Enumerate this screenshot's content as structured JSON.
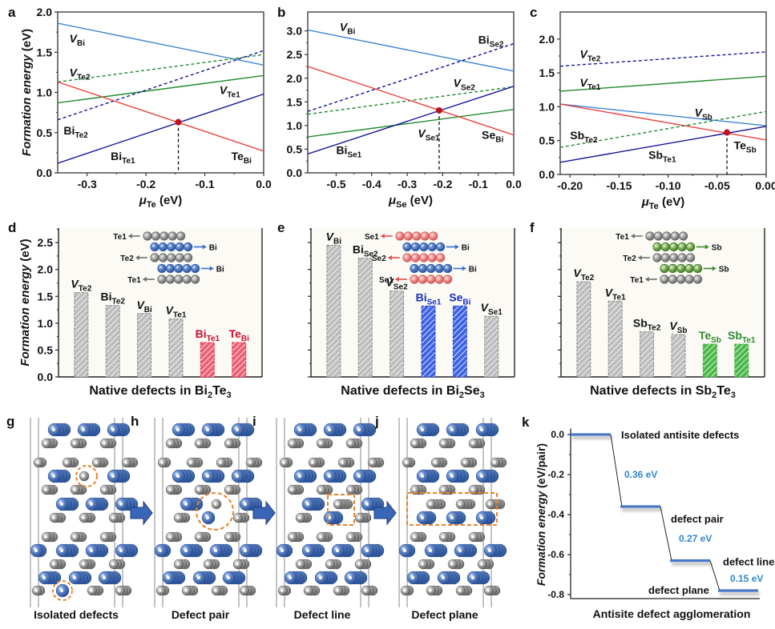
{
  "colors": {
    "v_cation": "#3a85d6",
    "anion_vac": "#1f8a2a",
    "antisite_cation": "#14149a",
    "antisite_anion": "#e8403a",
    "red_dot": "#c0101a",
    "bar_gray": "#a9a9a9",
    "bar_red": "#e0304a",
    "bar_blue": "#2a3fd0",
    "bar_green": "#3cae3c",
    "label_red": "#c8102e",
    "label_blue": "#1a2fc0",
    "label_green": "#2e8a2e",
    "k_level": "#4a78c8",
    "k_text": "#2f86d0",
    "orange": "#e8822a",
    "atom_blue": "#3e68b0",
    "atom_gray": "#8a8a8a",
    "arrow_blue": "#3a66b8",
    "plot_bg": "#fbfaf5"
  },
  "chart_data": [
    {
      "id": "a",
      "type": "line",
      "panel_letter": "a",
      "xlabel": "μ",
      "xlabel_sub": "Te",
      "xlabel_unit": " (eV)",
      "ylabel": "Formation energy (eV)",
      "xlim": [
        -0.35,
        0.0
      ],
      "ylim": [
        0.0,
        2.0
      ],
      "xticks": [
        -0.3,
        -0.2,
        -0.1,
        0.0
      ],
      "xtick_labels": [
        "-0.3",
        "-0.2",
        "-0.1",
        "0.0"
      ],
      "yticks": [
        0.0,
        0.5,
        1.0,
        1.5,
        2.0
      ],
      "ytick_labels": [
        "0.0",
        "0.5",
        "1.0",
        "1.5",
        "2.0"
      ],
      "series": [
        {
          "name": "V_Bi",
          "main": "V",
          "sub": "Bi",
          "italic": true,
          "color_key": "v_cation",
          "dash": false,
          "x": [
            -0.35,
            0.0
          ],
          "y": [
            1.86,
            1.34
          ],
          "label_at": [
            -0.33,
            1.62
          ]
        },
        {
          "name": "V_Te2",
          "main": "V",
          "sub": "Te2",
          "italic": true,
          "color_key": "anion_vac",
          "dash": true,
          "x": [
            -0.35,
            0.0
          ],
          "y": [
            1.13,
            1.47
          ],
          "label_at": [
            -0.33,
            1.2
          ]
        },
        {
          "name": "V_Te1",
          "main": "V",
          "sub": "Te1",
          "italic": true,
          "color_key": "anion_vac",
          "dash": false,
          "x": [
            -0.35,
            0.0
          ],
          "y": [
            0.87,
            1.21
          ],
          "label_at": [
            -0.075,
            0.98
          ]
        },
        {
          "name": "Bi_Te2",
          "main": "Bi",
          "sub": "Te2",
          "italic": false,
          "color_key": "antisite_cation",
          "dash": true,
          "x": [
            -0.35,
            0.0
          ],
          "y": [
            0.66,
            1.52
          ],
          "label_at": [
            -0.34,
            0.48
          ]
        },
        {
          "name": "Bi_Te1",
          "main": "Bi",
          "sub": "Te1",
          "italic": false,
          "color_key": "antisite_cation",
          "dash": false,
          "x": [
            -0.35,
            0.0
          ],
          "y": [
            0.12,
            0.98
          ],
          "label_at": [
            -0.26,
            0.16
          ]
        },
        {
          "name": "Te_Bi",
          "main": "Te",
          "sub": "Bi",
          "italic": false,
          "color_key": "antisite_anion",
          "dash": false,
          "x": [
            -0.35,
            0.0
          ],
          "y": [
            1.13,
            0.27
          ],
          "label_at": [
            -0.055,
            0.16
          ]
        }
      ],
      "marker": {
        "x": -0.145,
        "y": 0.63
      }
    },
    {
      "id": "b",
      "type": "line",
      "panel_letter": "b",
      "xlabel": "μ",
      "xlabel_sub": "Se",
      "xlabel_unit": " (eV)",
      "ylabel": "",
      "xlim": [
        -0.58,
        0.0
      ],
      "ylim": [
        0.0,
        3.4
      ],
      "xticks": [
        -0.5,
        -0.4,
        -0.3,
        -0.2,
        -0.1,
        0.0
      ],
      "xtick_labels": [
        "-0.5",
        "-0.4",
        "-0.3",
        "-0.2",
        "-0.1",
        "0.0"
      ],
      "yticks": [
        0.0,
        0.5,
        1.0,
        1.5,
        2.0,
        2.5,
        3.0
      ],
      "ytick_labels": [
        "0.0",
        "0.5",
        "1.0",
        "1.5",
        "2.0",
        "2.5",
        "3.0"
      ],
      "series": [
        {
          "name": "V_Bi",
          "main": "V",
          "sub": "Bi",
          "italic": true,
          "color_key": "v_cation",
          "dash": false,
          "x": [
            -0.58,
            0.0
          ],
          "y": [
            3.02,
            2.15
          ],
          "label_at": [
            -0.49,
            3.0
          ]
        },
        {
          "name": "Bi_Se2",
          "main": "Bi",
          "sub": "Se2",
          "italic": false,
          "color_key": "antisite_cation",
          "dash": true,
          "x": [
            -0.58,
            0.0
          ],
          "y": [
            1.3,
            2.73
          ],
          "label_at": [
            -0.1,
            2.73
          ]
        },
        {
          "name": "V_Se2",
          "main": "V",
          "sub": "Se2",
          "italic": true,
          "color_key": "anion_vac",
          "dash": true,
          "x": [
            -0.58,
            0.0
          ],
          "y": [
            1.24,
            1.82
          ],
          "label_at": [
            -0.17,
            1.82
          ]
        },
        {
          "name": "V_Se1",
          "main": "V",
          "sub": "Se1",
          "italic": true,
          "color_key": "anion_vac",
          "dash": false,
          "x": [
            -0.58,
            0.0
          ],
          "y": [
            0.76,
            1.34
          ],
          "label_at": [
            -0.27,
            0.75
          ]
        },
        {
          "name": "Bi_Se1",
          "main": "Bi",
          "sub": "Se1",
          "italic": false,
          "color_key": "antisite_cation",
          "dash": false,
          "x": [
            -0.58,
            0.0
          ],
          "y": [
            0.4,
            1.83
          ],
          "label_at": [
            -0.5,
            0.4
          ]
        },
        {
          "name": "Se_Bi",
          "main": "Se",
          "sub": "Bi",
          "italic": false,
          "color_key": "antisite_anion",
          "dash": false,
          "x": [
            -0.58,
            0.0
          ],
          "y": [
            2.25,
            0.8
          ],
          "label_at": [
            -0.09,
            0.72
          ]
        }
      ],
      "marker": {
        "x": -0.21,
        "y": 1.32
      }
    },
    {
      "id": "c",
      "type": "line",
      "panel_letter": "c",
      "xlabel": "μ",
      "xlabel_sub": "Te",
      "xlabel_unit": " (eV)",
      "ylabel": "",
      "xlim": [
        -0.21,
        0.0
      ],
      "ylim": [
        0.0,
        2.4
      ],
      "xticks": [
        -0.2,
        -0.15,
        -0.1,
        -0.05,
        0.0
      ],
      "xtick_labels": [
        "-0.20",
        "-0.15",
        "-0.10",
        "-0.05",
        "0.00"
      ],
      "yticks": [
        0.0,
        0.5,
        1.0,
        1.5,
        2.0
      ],
      "ytick_labels": [
        "0.0",
        "0.5",
        "1.0",
        "1.5",
        "2.0"
      ],
      "series": [
        {
          "name": "V_Te2",
          "main": "V",
          "sub": "Te2",
          "italic": true,
          "color_key": "antisite_cation",
          "dash": true,
          "x": [
            -0.21,
            0.0
          ],
          "y": [
            1.6,
            1.81
          ],
          "label_at": [
            -0.19,
            1.72
          ]
        },
        {
          "name": "V_Te1",
          "main": "V",
          "sub": "Te1",
          "italic": true,
          "color_key": "anion_vac",
          "dash": false,
          "x": [
            -0.21,
            0.0
          ],
          "y": [
            1.23,
            1.45
          ],
          "label_at": [
            -0.19,
            1.3
          ]
        },
        {
          "name": "V_Sb",
          "main": "V",
          "sub": "Sb",
          "italic": true,
          "color_key": "v_cation",
          "dash": false,
          "x": [
            -0.21,
            0.0
          ],
          "y": [
            1.04,
            0.72
          ],
          "label_at": [
            -0.073,
            0.86
          ]
        },
        {
          "name": "Te_Sb",
          "main": "Te",
          "sub": "Sb",
          "italic": false,
          "color_key": "antisite_anion",
          "dash": false,
          "x": [
            -0.21,
            0.0
          ],
          "y": [
            1.04,
            0.51
          ],
          "label_at": [
            -0.033,
            0.37
          ]
        },
        {
          "name": "Sb_Te2",
          "main": "Sb",
          "sub": "Te2",
          "italic": false,
          "color_key": "anion_vac",
          "dash": true,
          "x": [
            -0.21,
            0.0
          ],
          "y": [
            0.4,
            0.93
          ],
          "label_at": [
            -0.2,
            0.52
          ]
        },
        {
          "name": "Sb_Te1",
          "main": "Sb",
          "sub": "Te1",
          "italic": false,
          "color_key": "antisite_cation",
          "dash": false,
          "x": [
            -0.21,
            0.0
          ],
          "y": [
            0.18,
            0.71
          ],
          "label_at": [
            -0.12,
            0.23
          ]
        }
      ],
      "marker": {
        "x": -0.04,
        "y": 0.62
      }
    },
    {
      "id": "d",
      "type": "bar",
      "panel_letter": "d",
      "title": "Native defects in Bi",
      "title_sub1": "2",
      "title_mid": "Te",
      "title_sub2": "3",
      "ylabel": "Formation energy (eV)",
      "ylim": [
        0.0,
        2.77
      ],
      "yticks": [
        0.0,
        0.5,
        1.0,
        1.5,
        2.0,
        2.5
      ],
      "ytick_labels": [
        "0.0",
        "0.5",
        "1.0",
        "1.5",
        "2.0",
        "2.5"
      ],
      "show_ytick_labels": true,
      "bars": [
        {
          "main": "V",
          "sub": "Te2",
          "italic": true,
          "value": 1.57,
          "color_key": "bar_gray",
          "label_color_key": ""
        },
        {
          "main": "Bi",
          "sub": "Te2",
          "italic": false,
          "value": 1.33,
          "color_key": "bar_gray",
          "label_color_key": ""
        },
        {
          "main": "V",
          "sub": "Bi",
          "italic": true,
          "value": 1.18,
          "color_key": "bar_gray",
          "label_color_key": ""
        },
        {
          "main": "V",
          "sub": "Te1",
          "italic": true,
          "value": 1.08,
          "color_key": "bar_gray",
          "label_color_key": ""
        },
        {
          "main": "Bi",
          "sub": "Te1",
          "italic": false,
          "value": 0.64,
          "color_key": "bar_red",
          "label_color_key": "label_red"
        },
        {
          "main": "Te",
          "sub": "Bi",
          "italic": false,
          "value": 0.64,
          "color_key": "bar_red",
          "label_color_key": "label_red"
        }
      ],
      "inset": {
        "rows": [
          {
            "label": "Te1",
            "side": "left",
            "atom": "gray"
          },
          {
            "label": "Bi",
            "side": "right",
            "atom": "blue"
          },
          {
            "label": "Te2",
            "side": "left",
            "atom": "gray"
          },
          {
            "label": "Bi",
            "side": "right",
            "atom": "blue"
          },
          {
            "label": "Te1",
            "side": "left",
            "atom": "gray"
          }
        ]
      }
    },
    {
      "id": "e",
      "type": "bar",
      "panel_letter": "e",
      "title": "Native defects in Bi",
      "title_sub1": "2",
      "title_mid": "Se",
      "title_sub2": "3",
      "ylabel": "",
      "ylim": [
        0.0,
        2.77
      ],
      "yticks": [
        0.0,
        0.5,
        1.0,
        1.5,
        2.0,
        2.5
      ],
      "ytick_labels": [],
      "show_ytick_labels": false,
      "bars": [
        {
          "main": "V",
          "sub": "Bi",
          "italic": true,
          "value": 2.45,
          "color_key": "bar_gray",
          "label_color_key": ""
        },
        {
          "main": "Bi",
          "sub": "Se2",
          "italic": false,
          "value": 2.21,
          "color_key": "bar_gray",
          "label_color_key": ""
        },
        {
          "main": "V",
          "sub": "Se2",
          "italic": true,
          "value": 1.6,
          "color_key": "bar_gray",
          "label_color_key": ""
        },
        {
          "main": "Bi",
          "sub": "Se1",
          "italic": false,
          "value": 1.32,
          "color_key": "bar_blue",
          "label_color_key": "label_blue"
        },
        {
          "main": "Se",
          "sub": "Bi",
          "italic": false,
          "value": 1.32,
          "color_key": "bar_blue",
          "label_color_key": "label_blue"
        },
        {
          "main": "V",
          "sub": "Se1",
          "italic": true,
          "value": 1.13,
          "color_key": "bar_gray",
          "label_color_key": ""
        }
      ],
      "inset": {
        "rows": [
          {
            "label": "Se1",
            "side": "left",
            "atom": "red"
          },
          {
            "label": "Bi",
            "side": "right",
            "atom": "blue"
          },
          {
            "label": "Se2",
            "side": "left",
            "atom": "red"
          },
          {
            "label": "Bi",
            "side": "right",
            "atom": "blue"
          },
          {
            "label": "Se1",
            "side": "left",
            "atom": "red"
          }
        ]
      }
    },
    {
      "id": "f",
      "type": "bar",
      "panel_letter": "f",
      "title": "Native defects in Sb",
      "title_sub1": "2",
      "title_mid": "Te",
      "title_sub2": "3",
      "ylabel": "",
      "ylim": [
        0.0,
        2.77
      ],
      "yticks": [
        0.0,
        0.5,
        1.0,
        1.5,
        2.0,
        2.5
      ],
      "ytick_labels": [],
      "show_ytick_labels": false,
      "bars": [
        {
          "main": "V",
          "sub": "Te2",
          "italic": true,
          "value": 1.77,
          "color_key": "bar_gray",
          "label_color_key": ""
        },
        {
          "main": "V",
          "sub": "Te1",
          "italic": true,
          "value": 1.41,
          "color_key": "bar_gray",
          "label_color_key": ""
        },
        {
          "main": "Sb",
          "sub": "Te2",
          "italic": false,
          "value": 0.84,
          "color_key": "bar_gray",
          "label_color_key": ""
        },
        {
          "main": "V",
          "sub": "Sb",
          "italic": true,
          "value": 0.79,
          "color_key": "bar_gray",
          "label_color_key": ""
        },
        {
          "main": "Te",
          "sub": "Sb",
          "italic": false,
          "value": 0.61,
          "color_key": "bar_green",
          "label_color_key": "label_green"
        },
        {
          "main": "Sb",
          "sub": "Te1",
          "italic": false,
          "value": 0.61,
          "color_key": "bar_green",
          "label_color_key": "label_green"
        }
      ],
      "inset": {
        "rows": [
          {
            "label": "Te1",
            "side": "left",
            "atom": "gray"
          },
          {
            "label": "Sb",
            "side": "right",
            "atom": "green"
          },
          {
            "label": "Te2",
            "side": "left",
            "atom": "gray"
          },
          {
            "label": "Sb",
            "side": "right",
            "atom": "green"
          },
          {
            "label": "Te1",
            "side": "left",
            "atom": "gray"
          }
        ]
      }
    },
    {
      "id": "k",
      "type": "line",
      "subtype": "energy-levels",
      "panel_letter": "k",
      "ylabel": "Formation energy (eV/pair)",
      "xlabel": "Antisite defect agglomeration",
      "ylim": [
        -0.82,
        0.03
      ],
      "yticks": [
        0.0,
        -0.2,
        -0.4,
        -0.6,
        -0.8
      ],
      "ytick_labels": [
        "0.0",
        "-0.2",
        "-0.4",
        "-0.6",
        "-0.8"
      ],
      "levels": [
        {
          "name": "Isolated antisite defects",
          "value": 0.0
        },
        {
          "name": "defect pair",
          "value": -0.36
        },
        {
          "name": "defect line",
          "value": -0.63
        },
        {
          "name": "defect plane",
          "value": -0.78
        }
      ],
      "steps": [
        {
          "label": "0.36 eV",
          "delta": 0.36
        },
        {
          "label": "0.27 eV",
          "delta": 0.27
        },
        {
          "label": "0.15 eV",
          "delta": 0.15
        }
      ]
    }
  ],
  "structures": [
    {
      "letter": "g",
      "caption": "Isolated defects",
      "highlight": "circles"
    },
    {
      "letter": "h",
      "caption": "Defect pair",
      "highlight": "pair-circle"
    },
    {
      "letter": "i",
      "caption": "Defect line",
      "highlight": "line-box"
    },
    {
      "letter": "j",
      "caption": "Defect plane",
      "highlight": "plane-box"
    }
  ]
}
